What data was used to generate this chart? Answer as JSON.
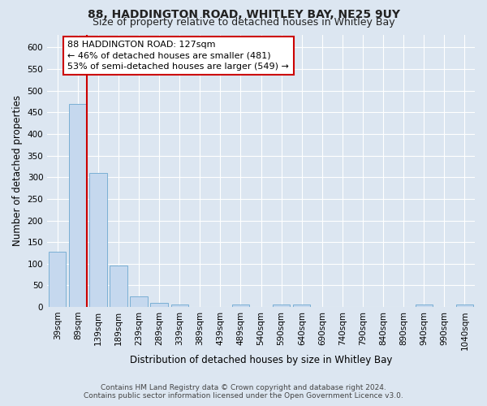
{
  "title": "88, HADDINGTON ROAD, WHITLEY BAY, NE25 9UY",
  "subtitle": "Size of property relative to detached houses in Whitley Bay",
  "xlabel": "Distribution of detached houses by size in Whitley Bay",
  "ylabel": "Number of detached properties",
  "footer1": "Contains HM Land Registry data © Crown copyright and database right 2024.",
  "footer2": "Contains public sector information licensed under the Open Government Licence v3.0.",
  "bar_labels": [
    "39sqm",
    "89sqm",
    "139sqm",
    "189sqm",
    "239sqm",
    "289sqm",
    "339sqm",
    "389sqm",
    "439sqm",
    "489sqm",
    "540sqm",
    "590sqm",
    "640sqm",
    "690sqm",
    "740sqm",
    "790sqm",
    "840sqm",
    "890sqm",
    "940sqm",
    "990sqm",
    "1040sqm"
  ],
  "bar_values": [
    128,
    470,
    310,
    96,
    25,
    10,
    5,
    0,
    0,
    5,
    0,
    5,
    5,
    0,
    0,
    0,
    0,
    0,
    5,
    0,
    5
  ],
  "bar_color": "#c5d8ee",
  "bar_edge_color": "#7aafd4",
  "vline_x": 1.45,
  "vline_color": "#cc0000",
  "annotation_line1": "88 HADDINGTON ROAD: 127sqm",
  "annotation_line2": "← 46% of detached houses are smaller (481)",
  "annotation_line3": "53% of semi-detached houses are larger (549) →",
  "ylim": [
    0,
    630
  ],
  "yticks": [
    0,
    50,
    100,
    150,
    200,
    250,
    300,
    350,
    400,
    450,
    500,
    550,
    600
  ],
  "background_color": "#dce6f1",
  "plot_bg_color": "#dce6f1",
  "grid_color": "#ffffff",
  "title_fontsize": 10,
  "subtitle_fontsize": 9,
  "axis_label_fontsize": 8.5,
  "tick_fontsize": 7.5,
  "annotation_fontsize": 8,
  "footer_fontsize": 6.5
}
